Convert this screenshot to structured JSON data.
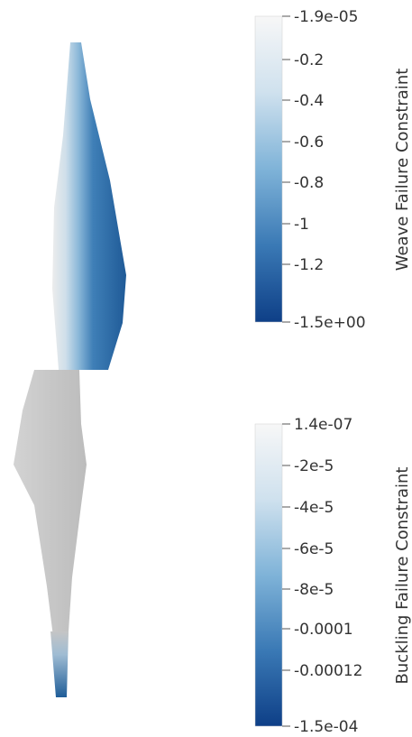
{
  "legends": [
    {
      "title": "Weave Failure Constraint",
      "ticks": [
        "-1.9e-05",
        "-0.2",
        "-0.4",
        "-0.6",
        "-0.8",
        "-1",
        "-1.2",
        "-1.5e+00"
      ],
      "colors": {
        "top": "#f7f7f7",
        "mid": "#5aa0cc",
        "bottom": "#0e3f87"
      }
    },
    {
      "title": "Buckling Failure Constraint",
      "ticks": [
        "1.4e-07",
        "-2e-5",
        "-4e-5",
        "-6e-5",
        "-8e-5",
        "-0.0001",
        "-0.00012",
        "-1.5e-04"
      ],
      "colors": {
        "top": "#f7f7f7",
        "mid": "#5aa0cc",
        "bottom": "#0e3f87"
      }
    }
  ],
  "model": {
    "blade_top_colors": {
      "light": "#e6e6e6",
      "mid": "#7fb0d4",
      "dark": "#245f98"
    },
    "blade_bottom_color": "#c6c6c6",
    "tip_color": "#1f5d98"
  }
}
